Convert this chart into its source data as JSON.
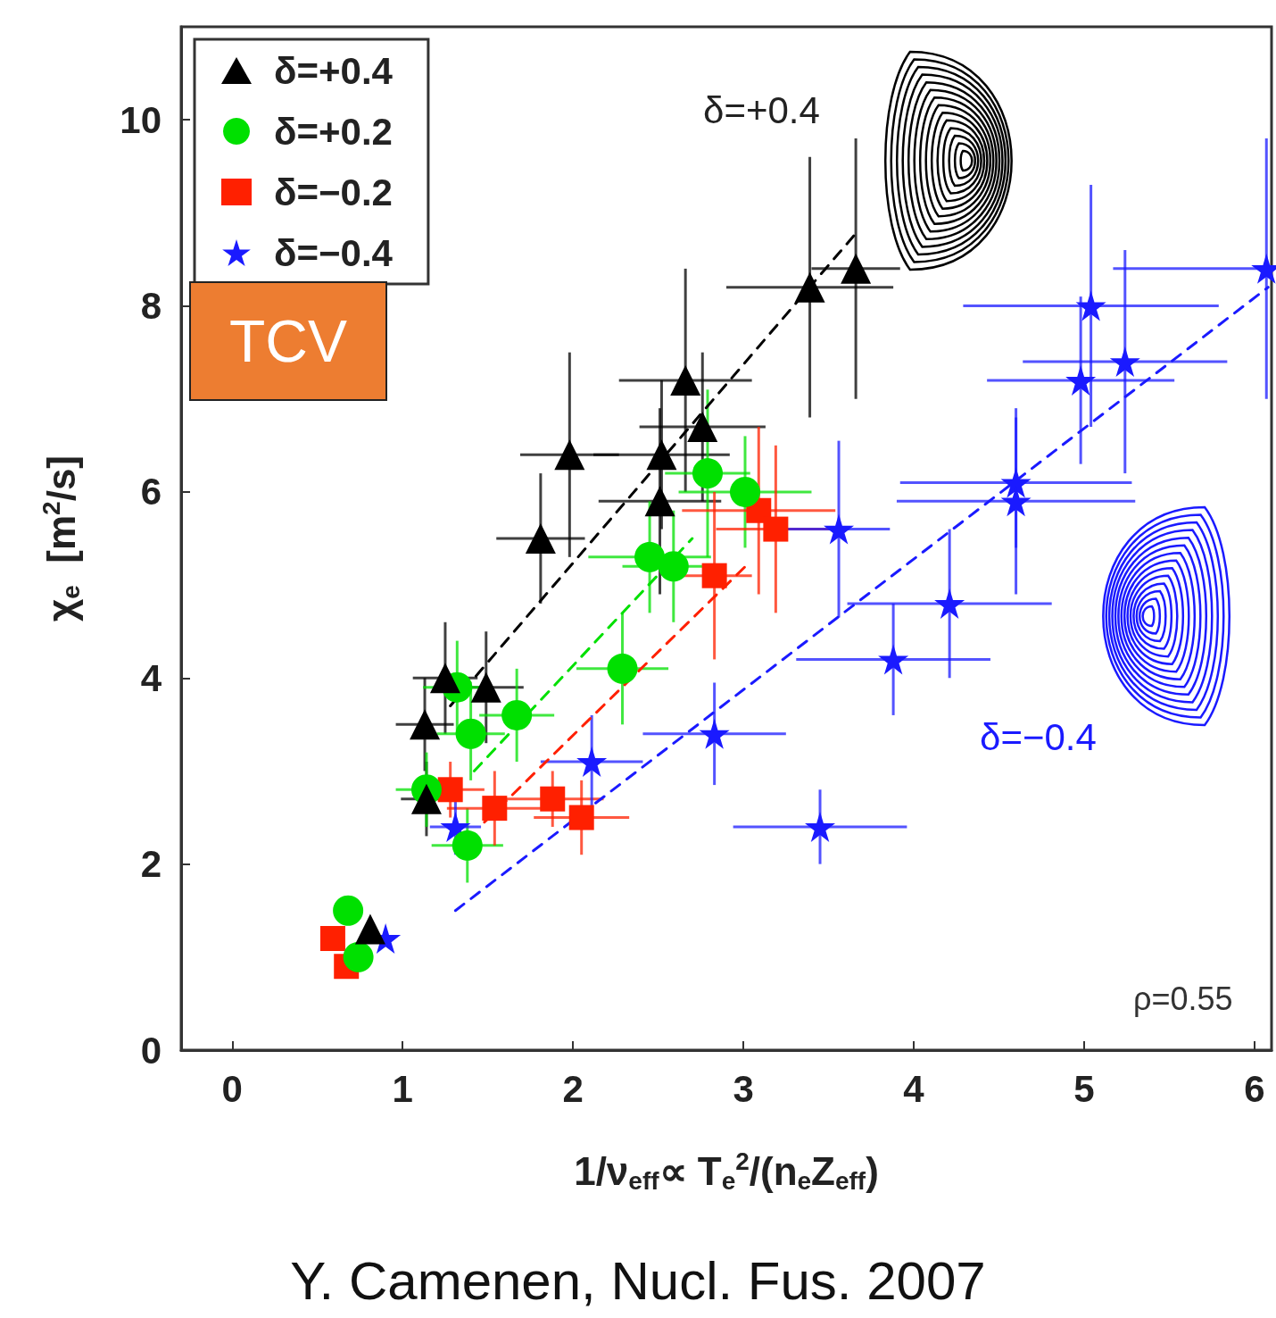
{
  "chart_data": {
    "type": "scatter",
    "xlabel": "1/ν$_{eff}$∝ T$_{e}$$^{2}$/(n$_{e}$Z$_{eff}$)",
    "ylabel": "χ$_{e}$  [m$^{2}$/s]",
    "xlim": [
      -0.3,
      6.1
    ],
    "xticks": [
      0,
      1,
      2,
      3,
      4,
      5,
      6
    ],
    "ylim": [
      0,
      11
    ],
    "yticks": [
      0,
      2,
      4,
      6,
      8,
      10
    ],
    "grid": false,
    "legend": "top left",
    "annotations": [
      "δ=+0.4",
      "δ=−0.4",
      "ρ=0.55",
      "TCV",
      "Y. Camenen, Nucl. Fus. 2007"
    ],
    "series": [
      {
        "name": "δ=+0.4",
        "color": "#000000",
        "marker": "triangle",
        "x": [
          3.39,
          3.66,
          2.66,
          2.76,
          2.52,
          2.51,
          1.98,
          1.81,
          1.25,
          1.49,
          1.13,
          1.14,
          0.81
        ],
        "values": [
          8.2,
          8.4,
          7.2,
          6.7,
          6.4,
          5.9,
          6.4,
          5.5,
          4.0,
          3.9,
          3.5,
          2.7,
          1.3
        ],
        "errors": [
          1.4,
          1.4,
          1.2,
          0.8,
          0.8,
          1.0,
          1.1,
          0.7,
          0.6,
          0.6,
          0.5,
          0.4,
          null
        ],
        "xerrors": [
          0.49,
          0.26,
          0.39,
          0.37,
          0.4,
          0.36,
          0.29,
          0.26,
          0.19,
          0.22,
          0.17,
          0.15,
          null
        ]
      },
      {
        "name": "δ=+0.2",
        "color": "#00e000",
        "marker": "circle",
        "x": [
          3.01,
          2.79,
          2.45,
          2.59,
          2.29,
          1.67,
          1.4,
          1.32,
          1.14,
          1.38,
          0.68,
          0.74
        ],
        "values": [
          6.0,
          6.2,
          5.3,
          5.2,
          4.1,
          3.6,
          3.4,
          3.9,
          2.8,
          2.2,
          1.5,
          1.0
        ],
        "errors": [
          0.6,
          0.9,
          0.6,
          0.6,
          0.6,
          0.5,
          0.5,
          0.5,
          0.4,
          0.4,
          null,
          null
        ],
        "xerrors": [
          0.39,
          0.25,
          0.36,
          0.3,
          0.27,
          0.22,
          0.2,
          0.2,
          0.18,
          0.21,
          null,
          null
        ]
      },
      {
        "name": "δ=−0.2",
        "color": "#ff2000",
        "marker": "square",
        "x": [
          3.09,
          3.19,
          2.83,
          1.54,
          1.88,
          2.05,
          1.28,
          0.59,
          0.67
        ],
        "values": [
          5.8,
          5.6,
          5.1,
          2.6,
          2.7,
          2.5,
          2.8,
          1.2,
          0.9
        ],
        "errors": [
          0.9,
          0.9,
          0.9,
          0.4,
          0.3,
          0.4,
          0.3,
          null,
          null
        ],
        "xerrors": [
          0.45,
          0.35,
          0.22,
          0.28,
          0.3,
          0.28,
          0.2,
          null,
          null
        ]
      },
      {
        "name": "δ=−0.4",
        "color": "#1a1aff",
        "marker": "star",
        "x": [
          6.07,
          5.04,
          4.98,
          5.24,
          4.6,
          4.6,
          3.56,
          4.21,
          3.88,
          2.83,
          3.45,
          2.11,
          1.31,
          0.9
        ],
        "values": [
          8.4,
          8.0,
          7.2,
          7.4,
          6.1,
          5.9,
          5.6,
          4.8,
          4.2,
          3.4,
          2.4,
          3.1,
          2.4,
          1.2
        ],
        "errors": [
          1.4,
          1.3,
          0.9,
          1.2,
          0.7,
          1.0,
          0.95,
          0.8,
          0.6,
          0.55,
          0.4,
          0.5,
          0.3,
          null
        ],
        "xerrors": [
          [
            5.17,
            6.1
          ],
          0.75,
          0.55,
          0.6,
          0.68,
          0.7,
          0.3,
          0.6,
          0.57,
          0.42,
          0.51,
          0.3,
          0.15,
          null
        ]
      },
      {
        "type": "line",
        "color": "#000000",
        "line_style": "dashed",
        "marker": "none",
        "x": [
          1.28,
          3.67
        ],
        "values": [
          3.7,
          8.8
        ]
      },
      {
        "type": "line",
        "color": "#00e000",
        "line_style": "dashed",
        "marker": "none",
        "x": [
          1.42,
          2.7
        ],
        "values": [
          3.0,
          5.5
        ]
      },
      {
        "type": "line",
        "color": "#ff2000",
        "line_style": "dashed",
        "marker": "none",
        "x": [
          1.48,
          3.04
        ],
        "values": [
          2.45,
          5.25
        ]
      },
      {
        "type": "line",
        "color": "#1a1aff",
        "line_style": "dashed",
        "marker": "none",
        "x": [
          1.31,
          6.08
        ],
        "values": [
          1.5,
          8.2
        ]
      }
    ]
  }
}
